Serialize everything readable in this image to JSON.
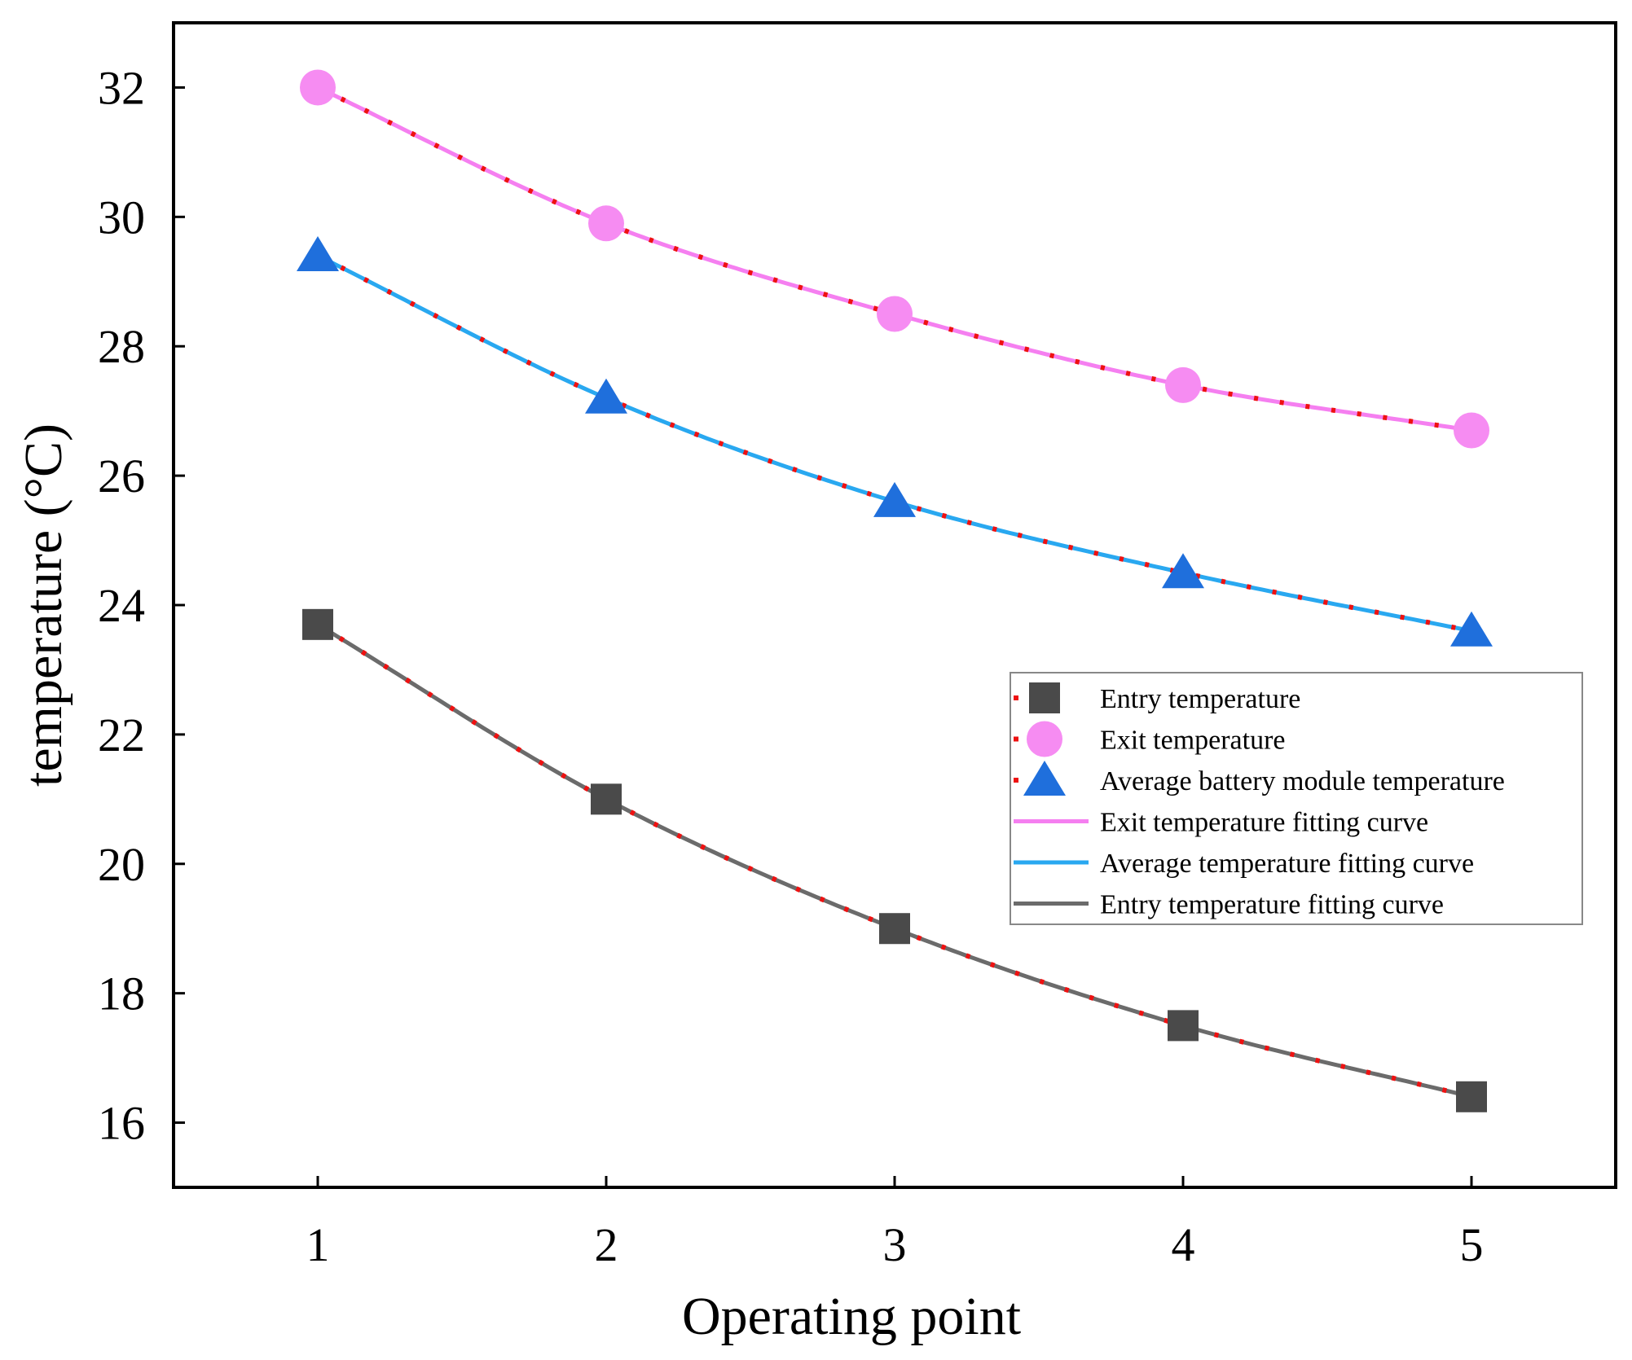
{
  "chart_data": {
    "type": "line",
    "title": "",
    "xlabel": "Operating point",
    "ylabel": "temperature (°C)",
    "xlim": [
      0.5,
      5.5
    ],
    "ylim": [
      15,
      33
    ],
    "x_ticks": [
      1,
      2,
      3,
      4,
      5
    ],
    "y_ticks": [
      16,
      18,
      20,
      22,
      24,
      26,
      28,
      30,
      32
    ],
    "grid": false,
    "legend_position": "center-right",
    "x": [
      1,
      2,
      3,
      4,
      5
    ],
    "series": [
      {
        "name": "Entry temperature",
        "kind": "marker",
        "marker": "square",
        "color": "#4a4a4a",
        "values": [
          23.7,
          21.0,
          19.0,
          17.5,
          16.4
        ]
      },
      {
        "name": "Exit temperature",
        "kind": "marker",
        "marker": "circle",
        "color": "#f68cf2",
        "values": [
          32.0,
          29.9,
          28.5,
          27.4,
          26.7
        ]
      },
      {
        "name": "Average battery module temperature",
        "kind": "marker",
        "marker": "triangle",
        "color": "#1f6fdc",
        "values": [
          29.4,
          27.2,
          25.6,
          24.5,
          23.6
        ]
      },
      {
        "name": "Exit temperature fitting curve",
        "kind": "curve",
        "color": "#f57ff0",
        "values": [
          32.0,
          29.9,
          28.5,
          27.4,
          26.7
        ]
      },
      {
        "name": "Average temperature fitting curve",
        "kind": "curve",
        "color": "#29a8f0",
        "values": [
          29.4,
          27.2,
          25.6,
          24.5,
          23.6
        ]
      },
      {
        "name": "Entry temperature fitting curve",
        "kind": "curve",
        "color": "#6b6b6b",
        "values": [
          23.7,
          21.0,
          19.0,
          17.5,
          16.4
        ]
      }
    ],
    "dotted_line_color": "#ee1111",
    "frame_color": "#000000"
  }
}
